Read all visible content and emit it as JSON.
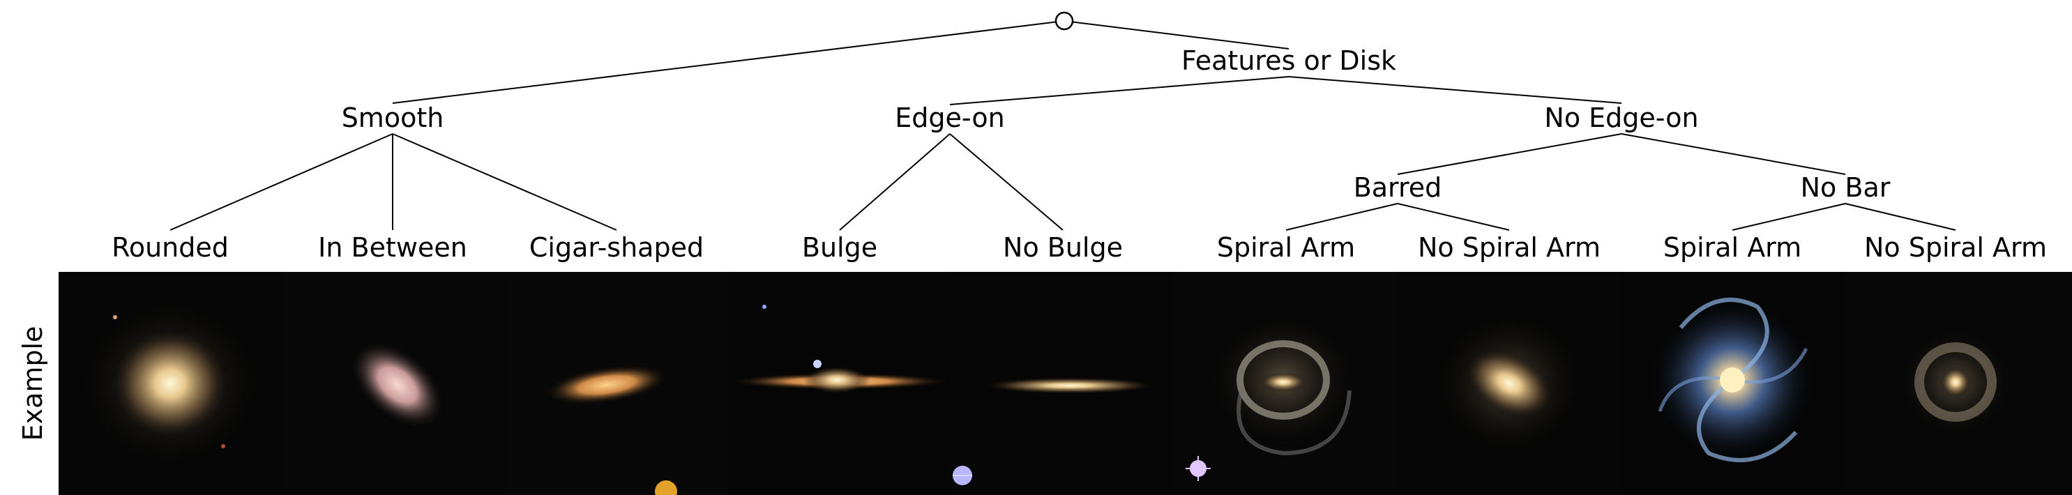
{
  "tree": {
    "root": {
      "id": "root",
      "label": ""
    },
    "nodes": [
      {
        "id": "features",
        "label": "Features or Disk",
        "parent": "root"
      },
      {
        "id": "smooth",
        "label": "Smooth",
        "parent": "root"
      },
      {
        "id": "edgeon",
        "label": "Edge-on",
        "parent": "features"
      },
      {
        "id": "noedgeon",
        "label": "No Edge-on",
        "parent": "features"
      },
      {
        "id": "barred",
        "label": "Barred",
        "parent": "noedgeon"
      },
      {
        "id": "nobar",
        "label": "No Bar",
        "parent": "noedgeon"
      },
      {
        "id": "rounded",
        "label": "Rounded",
        "parent": "smooth"
      },
      {
        "id": "inbetween",
        "label": "In Between",
        "parent": "smooth"
      },
      {
        "id": "cigar",
        "label": "Cigar-shaped",
        "parent": "smooth"
      },
      {
        "id": "bulge",
        "label": "Bulge",
        "parent": "edgeon"
      },
      {
        "id": "nobulge",
        "label": "No Bulge",
        "parent": "edgeon"
      },
      {
        "id": "barred-spiral",
        "label": "Spiral Arm",
        "parent": "barred"
      },
      {
        "id": "barred-nospiral",
        "label": "No Spiral Arm",
        "parent": "barred"
      },
      {
        "id": "nobar-spiral",
        "label": "Spiral Arm",
        "parent": "nobar"
      },
      {
        "id": "nobar-nospiral",
        "label": "No Spiral Arm",
        "parent": "nobar"
      }
    ]
  },
  "examples": {
    "row_label": "Example",
    "images": [
      {
        "id": "rounded",
        "kind": "round-elliptical"
      },
      {
        "id": "inbetween",
        "kind": "tilted-ellipse"
      },
      {
        "id": "cigar",
        "kind": "cigar"
      },
      {
        "id": "bulge",
        "kind": "edge-on-bulge"
      },
      {
        "id": "nobulge",
        "kind": "edge-on-thin"
      },
      {
        "id": "barred-spiral",
        "kind": "barred-ring-spiral"
      },
      {
        "id": "barred-nospiral",
        "kind": "barred-lens"
      },
      {
        "id": "nobar-spiral",
        "kind": "blue-grand-spiral"
      },
      {
        "id": "nobar-nospiral",
        "kind": "ring-no-arms"
      }
    ]
  }
}
